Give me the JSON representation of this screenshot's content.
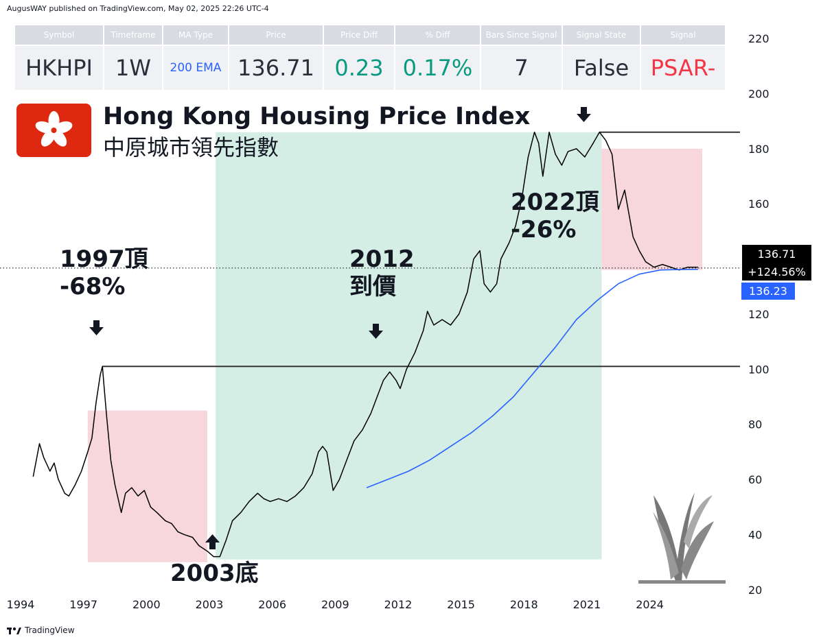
{
  "header": "AugusWAY published on TradingView.com, May 02, 2025 22:26 UTC-4",
  "footer": "TradingView",
  "table": {
    "headers": [
      "Symbol",
      "Timeframe",
      "MA Type",
      "Price",
      "Price Diff",
      "% Diff",
      "Bars Since Signal",
      "Signal State",
      "Signal"
    ],
    "values": [
      "HKHPI",
      "1W",
      "200 EMA",
      "136.71",
      "0.23",
      "0.17%",
      "7",
      "False",
      "PSAR-"
    ],
    "value_colors": [
      "#2a2e39",
      "#2a2e39",
      "#2962ff",
      "#2a2e39",
      "#089981",
      "#089981",
      "#2a2e39",
      "#2a2e39",
      "#f23645"
    ]
  },
  "title": "Hong Kong Housing Price Index",
  "subtitle": "中原城市領先指數",
  "annotations": {
    "a1997": "1997頂\n-68%",
    "a2003": "2003底",
    "a2012": "2012\n到價",
    "a2022": "2022頂\n-26%"
  },
  "price_tags": {
    "price": "136.71",
    "change": "+124.56%",
    "ema": "136.23"
  },
  "colors": {
    "price_line": "#000000",
    "ema_line": "#2962ff",
    "bear_zone": "#f8d7dc",
    "bull_zone": "#d4ede5",
    "flag": "#de2910"
  },
  "chart_data": {
    "type": "line",
    "ylim": [
      10,
      225
    ],
    "xlim": [
      1994,
      2028.3
    ],
    "xticks": [
      "1994",
      "1997",
      "2000",
      "2003",
      "2006",
      "2009",
      "2012",
      "2015",
      "2018",
      "2021",
      "2024"
    ],
    "yticks": [
      "220",
      "200",
      "180",
      "160",
      "140",
      "120",
      "100",
      "80",
      "60",
      "40",
      "20"
    ],
    "reference_lines": [
      101,
      186,
      136.71
    ],
    "zones": [
      {
        "kind": "bear",
        "x": [
          1997.2,
          2002.9
        ],
        "y": [
          30,
          85
        ]
      },
      {
        "kind": "bull",
        "x": [
          2003.3,
          2021.7
        ],
        "y": [
          31,
          186
        ]
      },
      {
        "kind": "bear",
        "x": [
          2021.7,
          2026.5
        ],
        "y": [
          136,
          180
        ]
      }
    ],
    "series": [
      {
        "kind": "price",
        "points": [
          [
            1994.6,
            61
          ],
          [
            1994.9,
            73
          ],
          [
            1995.1,
            68
          ],
          [
            1995.4,
            63
          ],
          [
            1995.6,
            66
          ],
          [
            1995.8,
            60
          ],
          [
            1996.1,
            55
          ],
          [
            1996.3,
            54
          ],
          [
            1996.6,
            58
          ],
          [
            1996.9,
            63
          ],
          [
            1997.2,
            70
          ],
          [
            1997.4,
            75
          ],
          [
            1997.6,
            88
          ],
          [
            1997.8,
            98
          ],
          [
            1997.9,
            101
          ],
          [
            1998.0,
            92
          ],
          [
            1998.1,
            83
          ],
          [
            1998.3,
            67
          ],
          [
            1998.5,
            58
          ],
          [
            1998.8,
            48
          ],
          [
            1999.0,
            55
          ],
          [
            1999.3,
            57
          ],
          [
            1999.6,
            54
          ],
          [
            1999.9,
            56
          ],
          [
            2000.2,
            50
          ],
          [
            2000.5,
            48
          ],
          [
            2000.9,
            45
          ],
          [
            2001.2,
            44
          ],
          [
            2001.5,
            41
          ],
          [
            2001.8,
            40
          ],
          [
            2002.2,
            39
          ],
          [
            2002.5,
            36
          ],
          [
            2002.9,
            34
          ],
          [
            2003.2,
            32
          ],
          [
            2003.5,
            32
          ],
          [
            2003.8,
            38
          ],
          [
            2004.1,
            45
          ],
          [
            2004.5,
            48
          ],
          [
            2004.9,
            52
          ],
          [
            2005.3,
            55
          ],
          [
            2005.6,
            53
          ],
          [
            2005.9,
            52
          ],
          [
            2006.3,
            53
          ],
          [
            2006.7,
            52
          ],
          [
            2007.1,
            54
          ],
          [
            2007.5,
            57
          ],
          [
            2007.9,
            62
          ],
          [
            2008.2,
            70
          ],
          [
            2008.4,
            72
          ],
          [
            2008.6,
            70
          ],
          [
            2008.9,
            56
          ],
          [
            2009.2,
            60
          ],
          [
            2009.6,
            68
          ],
          [
            2009.9,
            74
          ],
          [
            2010.3,
            78
          ],
          [
            2010.7,
            84
          ],
          [
            2011.0,
            90
          ],
          [
            2011.3,
            96
          ],
          [
            2011.6,
            99
          ],
          [
            2011.9,
            96
          ],
          [
            2012.1,
            93
          ],
          [
            2012.4,
            100
          ],
          [
            2012.8,
            106
          ],
          [
            2013.2,
            114
          ],
          [
            2013.4,
            121
          ],
          [
            2013.7,
            116
          ],
          [
            2014.1,
            118
          ],
          [
            2014.5,
            116
          ],
          [
            2014.9,
            120
          ],
          [
            2015.3,
            128
          ],
          [
            2015.6,
            140
          ],
          [
            2015.9,
            143
          ],
          [
            2016.1,
            131
          ],
          [
            2016.4,
            128
          ],
          [
            2016.7,
            131
          ],
          [
            2016.9,
            140
          ],
          [
            2017.3,
            146
          ],
          [
            2017.6,
            152
          ],
          [
            2017.9,
            162
          ],
          [
            2018.2,
            177
          ],
          [
            2018.5,
            186
          ],
          [
            2018.7,
            182
          ],
          [
            2018.9,
            170
          ],
          [
            2019.2,
            186
          ],
          [
            2019.5,
            178
          ],
          [
            2019.8,
            174
          ],
          [
            2020.1,
            179
          ],
          [
            2020.5,
            180
          ],
          [
            2020.9,
            177
          ],
          [
            2021.3,
            182
          ],
          [
            2021.6,
            186
          ],
          [
            2021.9,
            183
          ],
          [
            2022.2,
            178
          ],
          [
            2022.5,
            158
          ],
          [
            2022.8,
            165
          ],
          [
            2023.2,
            148
          ],
          [
            2023.5,
            143
          ],
          [
            2023.8,
            139
          ],
          [
            2024.2,
            137
          ],
          [
            2024.6,
            138
          ],
          [
            2025.0,
            137
          ],
          [
            2025.4,
            136
          ],
          [
            2025.8,
            137
          ],
          [
            2026.3,
            137
          ]
        ]
      },
      {
        "kind": "ema",
        "name": "200 EMA",
        "points": [
          [
            2010.5,
            57
          ],
          [
            2011.5,
            60
          ],
          [
            2012.5,
            63
          ],
          [
            2013.5,
            67
          ],
          [
            2014.5,
            72
          ],
          [
            2015.5,
            77
          ],
          [
            2016.5,
            83
          ],
          [
            2017.5,
            90
          ],
          [
            2018.5,
            99
          ],
          [
            2019.5,
            108
          ],
          [
            2020.5,
            118
          ],
          [
            2021.5,
            125
          ],
          [
            2022.5,
            131
          ],
          [
            2023.5,
            134.5
          ],
          [
            2024.5,
            136
          ],
          [
            2025.5,
            136.2
          ],
          [
            2026.3,
            136.23
          ]
        ]
      }
    ]
  }
}
